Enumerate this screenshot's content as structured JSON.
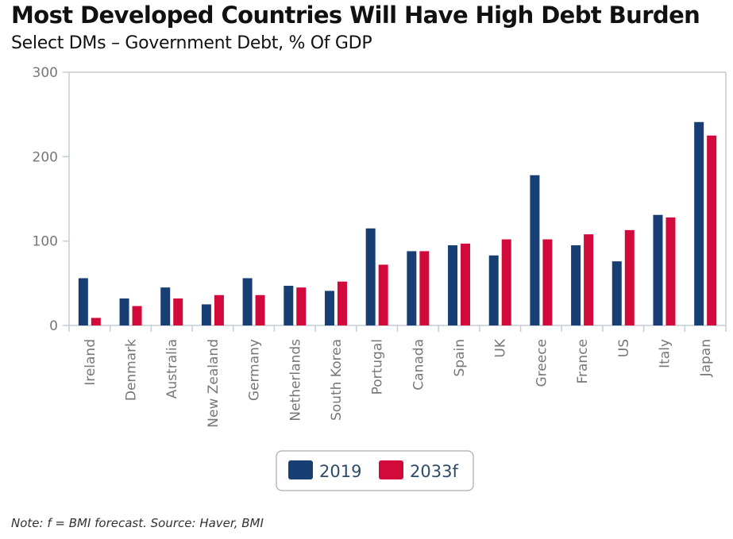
{
  "header": {
    "title": "Most Developed Countries Will Have High Debt Burden",
    "subtitle": "Select DMs – Government Debt, % Of GDP"
  },
  "footer": {
    "note": "Note: f = BMI forecast. Source: Haver, BMI"
  },
  "chart_data": {
    "type": "bar",
    "title": "Most Developed Countries Will Have High Debt Burden",
    "subtitle": "Select DMs – Government Debt, % Of GDP",
    "xlabel": "",
    "ylabel": "",
    "ylim": [
      0,
      300
    ],
    "yticks": [
      0,
      100,
      200,
      300
    ],
    "grid": false,
    "legend_position": "bottom-center",
    "categories": [
      "Ireland",
      "Denmark",
      "Australia",
      "New Zealand",
      "Germany",
      "Netherlands",
      "South Korea",
      "Portugal",
      "Canada",
      "Spain",
      "UK",
      "Greece",
      "France",
      "US",
      "Italy",
      "Japan"
    ],
    "series": [
      {
        "name": "2019",
        "color": "#173f74",
        "values": [
          56,
          32,
          45,
          25,
          56,
          47,
          41,
          115,
          88,
          95,
          83,
          178,
          95,
          76,
          131,
          241
        ]
      },
      {
        "name": "2033f",
        "color": "#d20a3c",
        "values": [
          9,
          23,
          32,
          36,
          36,
          45,
          52,
          72,
          88,
          97,
          102,
          102,
          108,
          113,
          128,
          225
        ]
      }
    ]
  }
}
